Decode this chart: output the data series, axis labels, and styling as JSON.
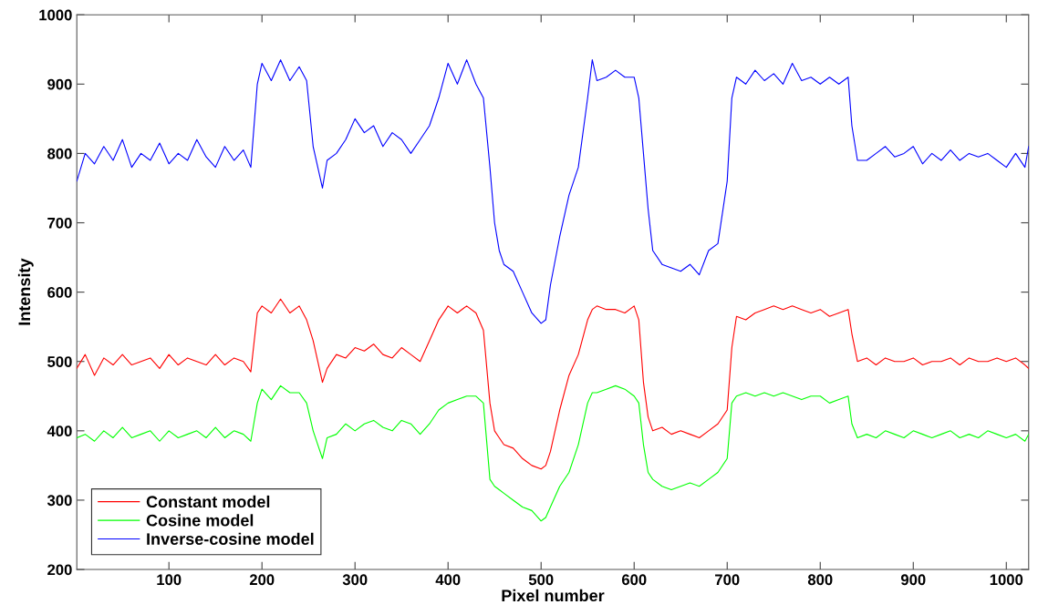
{
  "chart_data": {
    "type": "line",
    "xlabel": "Pixel number",
    "ylabel": "Intensity",
    "xlim": [
      1,
      1024
    ],
    "ylim": [
      200,
      1000
    ],
    "xticks": [
      100,
      200,
      300,
      400,
      500,
      600,
      700,
      800,
      900,
      1000
    ],
    "yticks": [
      200,
      300,
      400,
      500,
      600,
      700,
      800,
      900,
      1000
    ],
    "grid": false,
    "legend": "bottom left",
    "marker": "none",
    "line_style": "solid",
    "x": [
      1,
      10,
      20,
      30,
      40,
      50,
      60,
      70,
      80,
      90,
      100,
      110,
      120,
      130,
      140,
      150,
      160,
      170,
      180,
      188,
      195,
      200,
      210,
      220,
      230,
      240,
      248,
      255,
      260,
      265,
      270,
      280,
      290,
      300,
      310,
      320,
      330,
      340,
      350,
      360,
      370,
      380,
      390,
      400,
      410,
      420,
      430,
      438,
      445,
      450,
      455,
      460,
      470,
      480,
      490,
      500,
      505,
      510,
      520,
      530,
      540,
      550,
      555,
      560,
      570,
      580,
      590,
      600,
      605,
      610,
      615,
      620,
      630,
      640,
      650,
      660,
      670,
      680,
      690,
      700,
      705,
      710,
      720,
      730,
      740,
      750,
      760,
      770,
      780,
      790,
      800,
      810,
      820,
      830,
      834,
      840,
      850,
      860,
      870,
      880,
      890,
      900,
      910,
      920,
      930,
      940,
      950,
      960,
      970,
      980,
      990,
      1000,
      1010,
      1020,
      1024
    ],
    "series": [
      {
        "name": "Constant model",
        "color": "#ff0000",
        "values": [
          490,
          510,
          480,
          505,
          495,
          510,
          495,
          500,
          505,
          490,
          510,
          495,
          505,
          500,
          495,
          510,
          495,
          505,
          500,
          485,
          570,
          580,
          570,
          590,
          570,
          580,
          560,
          530,
          500,
          470,
          490,
          510,
          505,
          520,
          515,
          525,
          510,
          505,
          520,
          510,
          500,
          530,
          560,
          580,
          570,
          580,
          570,
          545,
          440,
          400,
          390,
          380,
          375,
          360,
          350,
          345,
          350,
          370,
          430,
          480,
          510,
          560,
          575,
          580,
          575,
          575,
          570,
          580,
          560,
          470,
          420,
          400,
          405,
          395,
          400,
          395,
          390,
          400,
          410,
          430,
          520,
          565,
          560,
          570,
          575,
          580,
          575,
          580,
          575,
          570,
          575,
          565,
          570,
          575,
          540,
          500,
          505,
          495,
          505,
          500,
          500,
          505,
          495,
          500,
          500,
          505,
          495,
          505,
          500,
          500,
          505,
          500,
          505,
          495,
          490
        ]
      },
      {
        "name": "Cosine model",
        "color": "#00ff00",
        "values": [
          390,
          395,
          385,
          400,
          390,
          405,
          390,
          395,
          400,
          385,
          400,
          390,
          395,
          400,
          390,
          405,
          390,
          400,
          395,
          385,
          440,
          460,
          445,
          465,
          455,
          455,
          440,
          400,
          380,
          360,
          390,
          395,
          410,
          400,
          410,
          415,
          405,
          400,
          415,
          410,
          395,
          410,
          430,
          440,
          445,
          450,
          450,
          440,
          330,
          320,
          315,
          310,
          300,
          290,
          285,
          270,
          275,
          290,
          320,
          340,
          380,
          440,
          455,
          455,
          460,
          465,
          460,
          450,
          440,
          380,
          340,
          330,
          320,
          315,
          320,
          325,
          320,
          330,
          340,
          360,
          440,
          450,
          455,
          450,
          455,
          450,
          455,
          450,
          445,
          450,
          450,
          440,
          445,
          450,
          410,
          390,
          395,
          390,
          400,
          395,
          390,
          400,
          395,
          390,
          395,
          400,
          390,
          395,
          390,
          400,
          395,
          390,
          395,
          385,
          395
        ]
      },
      {
        "name": "Inverse-cosine model",
        "color": "#0000ff",
        "values": [
          760,
          800,
          785,
          810,
          790,
          820,
          780,
          800,
          790,
          815,
          785,
          800,
          790,
          820,
          795,
          780,
          810,
          790,
          805,
          780,
          900,
          930,
          905,
          935,
          905,
          925,
          905,
          810,
          780,
          750,
          790,
          800,
          820,
          850,
          830,
          840,
          810,
          830,
          820,
          800,
          820,
          840,
          880,
          930,
          900,
          935,
          900,
          880,
          780,
          700,
          660,
          640,
          630,
          600,
          570,
          555,
          560,
          610,
          680,
          740,
          780,
          880,
          935,
          905,
          910,
          920,
          910,
          910,
          880,
          800,
          720,
          660,
          640,
          635,
          630,
          640,
          625,
          660,
          670,
          760,
          880,
          910,
          900,
          920,
          905,
          915,
          900,
          930,
          905,
          910,
          900,
          910,
          900,
          910,
          840,
          790,
          790,
          800,
          810,
          795,
          800,
          810,
          785,
          800,
          790,
          805,
          790,
          800,
          795,
          800,
          790,
          780,
          800,
          780,
          810
        ]
      }
    ]
  }
}
